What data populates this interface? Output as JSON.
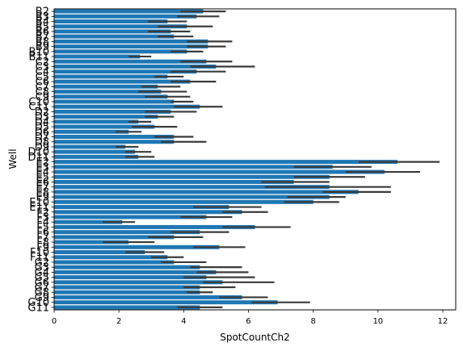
{
  "chart_data": {
    "type": "bar",
    "orientation": "horizontal",
    "xlabel": "SpotCountCh2",
    "ylabel": "Well",
    "xlim": [
      0,
      12.4
    ],
    "xticks": [
      "0",
      "2",
      "4",
      "6",
      "8",
      "10",
      "12"
    ],
    "bar_color": "#1f77b4",
    "errorbar_color": "#3b3b3b",
    "categories": [
      "B2",
      "B3",
      "B4",
      "B5",
      "B6",
      "B7",
      "B8",
      "B9",
      "B10",
      "B11",
      "C2",
      "C3",
      "C4",
      "C5",
      "C6",
      "C7",
      "C8",
      "C9",
      "C10",
      "C11",
      "D2",
      "D3",
      "D4",
      "D5",
      "D6",
      "D7",
      "D8",
      "D9",
      "D10",
      "D11",
      "E2",
      "E3",
      "E4",
      "E5",
      "E6",
      "E7",
      "E8",
      "E9",
      "E10",
      "E11",
      "F2",
      "F3",
      "F4",
      "F5",
      "F6",
      "F7",
      "F8",
      "F9",
      "F10",
      "F11",
      "G2",
      "G3",
      "G4",
      "G5",
      "G6",
      "G7",
      "G8",
      "G9",
      "G10",
      "G11"
    ],
    "values": [
      4.6,
      4.4,
      3.5,
      4.1,
      3.6,
      3.7,
      4.75,
      4.75,
      4.1,
      2.65,
      4.7,
      5.0,
      4.4,
      3.5,
      4.2,
      3.2,
      3.3,
      3.5,
      3.7,
      4.5,
      3.6,
      3.2,
      2.6,
      3.1,
      2.3,
      3.7,
      3.7,
      2.2,
      2.5,
      2.6,
      10.6,
      8.6,
      10.2,
      8.5,
      7.4,
      8.5,
      9.4,
      8.5,
      8.0,
      5.4,
      5.8,
      4.7,
      2.1,
      6.2,
      4.5,
      3.7,
      2.3,
      5.1,
      2.8,
      3.5,
      3.7,
      4.5,
      5.0,
      4.7,
      5.2,
      4.5,
      4.5,
      5.8,
      6.9,
      4.5
    ],
    "ci_low": [
      3.9,
      3.8,
      2.9,
      3.2,
      2.9,
      3.2,
      4.1,
      4.1,
      3.6,
      2.3,
      3.9,
      4.2,
      3.6,
      3.1,
      3.6,
      2.7,
      2.6,
      2.8,
      3.6,
      3.7,
      2.8,
      2.8,
      2.3,
      2.4,
      1.9,
      3.1,
      3.3,
      1.9,
      2.2,
      2.2,
      9.4,
      7.4,
      9.0,
      7.4,
      6.4,
      6.5,
      8.3,
      7.2,
      7.1,
      4.3,
      5.2,
      3.9,
      1.5,
      5.2,
      3.6,
      2.9,
      1.5,
      4.3,
      2.2,
      3.0,
      3.3,
      4.2,
      4.4,
      4.0,
      4.6,
      4.0,
      4.1,
      5.1,
      6.1,
      3.8
    ],
    "ci_high": [
      5.3,
      5.1,
      4.1,
      4.9,
      4.2,
      4.3,
      5.5,
      5.3,
      4.6,
      3.0,
      5.5,
      6.2,
      5.3,
      4.0,
      5.0,
      3.9,
      4.1,
      4.2,
      4.3,
      5.2,
      4.4,
      3.7,
      3.0,
      3.8,
      2.7,
      4.3,
      4.7,
      2.6,
      3.0,
      3.1,
      11.9,
      9.8,
      11.3,
      9.6,
      8.5,
      10.4,
      10.4,
      9.0,
      8.8,
      6.4,
      6.6,
      5.5,
      2.5,
      7.3,
      5.4,
      4.6,
      3.1,
      5.9,
      3.4,
      4.0,
      4.7,
      5.8,
      6.0,
      6.2,
      6.8,
      5.6,
      4.9,
      6.6,
      7.9,
      5.2
    ]
  }
}
